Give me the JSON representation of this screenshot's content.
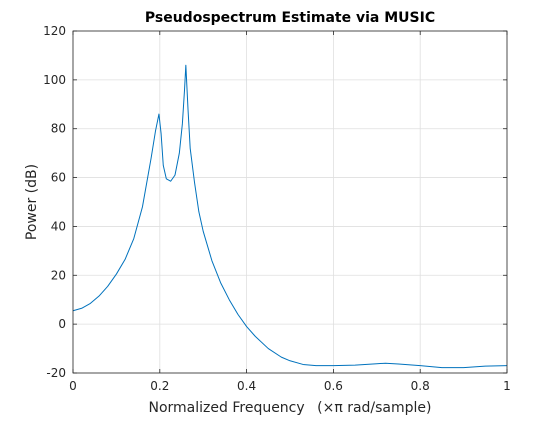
{
  "chart_data": {
    "type": "line",
    "title": "Pseudospectrum Estimate via MUSIC",
    "xlabel_text": "Normalized Frequency",
    "xlabel_unit": "(×π rad/sample)",
    "ylabel": "Power (dB)",
    "xlim": [
      0,
      1
    ],
    "ylim": [
      -20,
      120
    ],
    "xticks": [
      0,
      0.2,
      0.4,
      0.6,
      0.8,
      1
    ],
    "xtick_labels": [
      "0",
      "0.2",
      "0.4",
      "0.6",
      "0.8",
      "1"
    ],
    "yticks": [
      -20,
      0,
      20,
      40,
      60,
      80,
      100,
      120
    ],
    "ytick_labels": [
      "-20",
      "0",
      "20",
      "40",
      "60",
      "80",
      "100",
      "120"
    ],
    "grid": true,
    "line_color": "#0072BD",
    "series": [
      {
        "x": [
          0,
          0.02,
          0.04,
          0.06,
          0.08,
          0.1,
          0.12,
          0.14,
          0.16,
          0.18,
          0.19,
          0.198,
          0.203,
          0.208,
          0.215,
          0.225,
          0.235,
          0.245,
          0.252,
          0.257,
          0.26,
          0.265,
          0.27,
          0.28,
          0.29,
          0.3,
          0.32,
          0.34,
          0.36,
          0.38,
          0.4,
          0.42,
          0.45,
          0.48,
          0.5,
          0.53,
          0.56,
          0.6,
          0.65,
          0.7,
          0.72,
          0.75,
          0.8,
          0.85,
          0.9,
          0.95,
          1.0
        ],
        "y": [
          5.5,
          6.5,
          8.5,
          11.5,
          15.5,
          20.5,
          26.5,
          35,
          48,
          68,
          79,
          86,
          78,
          65,
          59.5,
          58.5,
          61,
          70,
          82,
          96,
          106,
          88,
          72,
          58,
          46,
          38,
          26,
          17,
          10,
          4,
          -1,
          -5,
          -10,
          -13.5,
          -15,
          -16.5,
          -17,
          -17,
          -16.8,
          -16.2,
          -16,
          -16.3,
          -17,
          -17.8,
          -17.8,
          -17.2,
          -17
        ]
      }
    ]
  }
}
